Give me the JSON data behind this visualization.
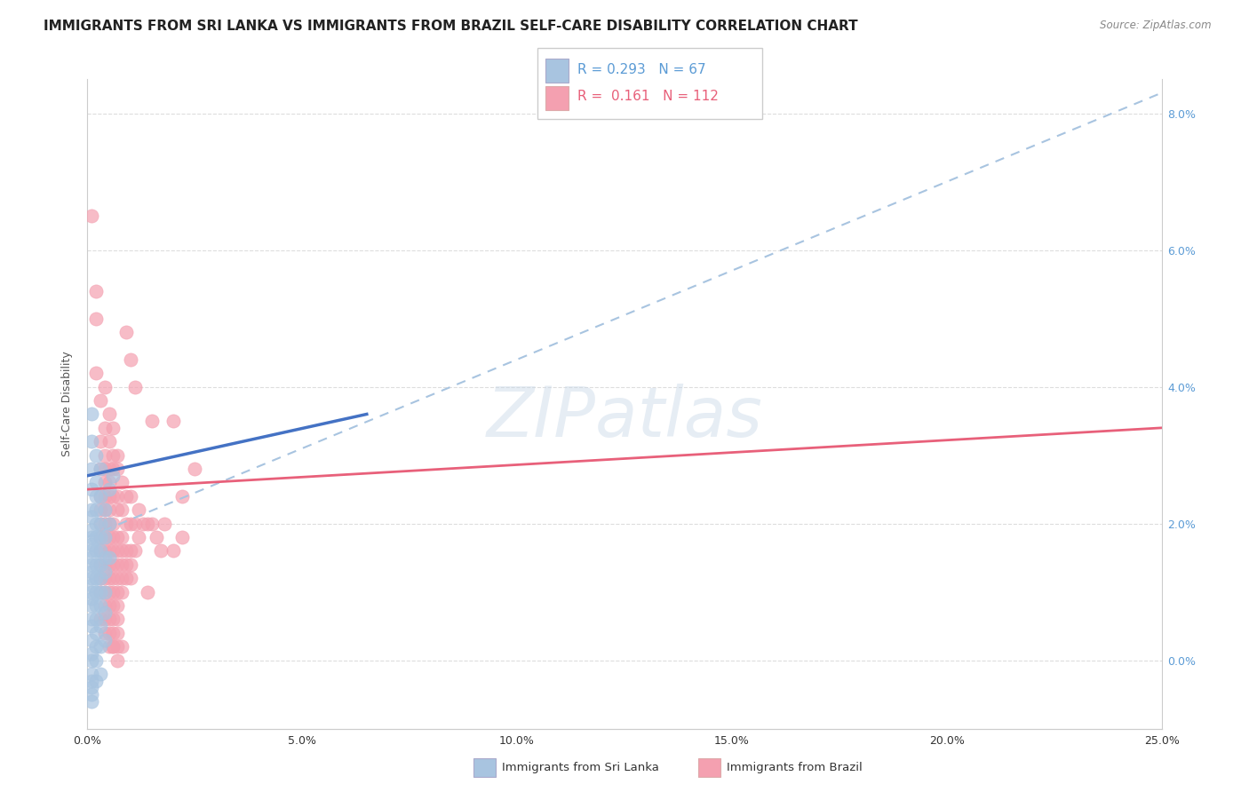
{
  "title": "IMMIGRANTS FROM SRI LANKA VS IMMIGRANTS FROM BRAZIL SELF-CARE DISABILITY CORRELATION CHART",
  "source": "Source: ZipAtlas.com",
  "ylabel_label": "Self-Care Disability",
  "xlim": [
    0.0,
    0.25
  ],
  "ylim": [
    -0.01,
    0.085
  ],
  "yticks": [
    0.0,
    0.02,
    0.04,
    0.06,
    0.08
  ],
  "yticklabels": [
    "0.0%",
    "2.0%",
    "4.0%",
    "6.0%",
    "8.0%"
  ],
  "xticks": [
    0.0,
    0.05,
    0.1,
    0.15,
    0.2,
    0.25
  ],
  "xticklabels": [
    "0.0%",
    "5.0%",
    "10.0%",
    "15.0%",
    "20.0%",
    "25.0%"
  ],
  "sri_lanka_color": "#a8c4e0",
  "brazil_color": "#f4a0b0",
  "sri_lanka_line_color": "#4472c4",
  "brazil_line_color": "#e8607a",
  "dashed_line_color": "#a8c4e0",
  "legend_box_sri_lanka": "#a8c4e0",
  "legend_box_brazil": "#f4a0b0",
  "R_sri_lanka": 0.293,
  "N_sri_lanka": 67,
  "R_brazil": 0.161,
  "N_brazil": 112,
  "watermark": "ZIPatlas",
  "sri_lanka_scatter": [
    [
      0.001,
      0.036
    ],
    [
      0.001,
      0.032
    ],
    [
      0.001,
      0.028
    ],
    [
      0.001,
      0.025
    ],
    [
      0.001,
      0.022
    ],
    [
      0.001,
      0.021
    ],
    [
      0.001,
      0.019
    ],
    [
      0.001,
      0.018
    ],
    [
      0.001,
      0.017
    ],
    [
      0.001,
      0.016
    ],
    [
      0.001,
      0.015
    ],
    [
      0.001,
      0.014
    ],
    [
      0.001,
      0.013
    ],
    [
      0.001,
      0.012
    ],
    [
      0.001,
      0.011
    ],
    [
      0.001,
      0.01
    ],
    [
      0.001,
      0.009
    ],
    [
      0.001,
      0.008
    ],
    [
      0.001,
      0.006
    ],
    [
      0.001,
      0.005
    ],
    [
      0.001,
      0.003
    ],
    [
      0.001,
      0.001
    ],
    [
      0.001,
      0.0
    ],
    [
      0.001,
      -0.002
    ],
    [
      0.001,
      -0.003
    ],
    [
      0.001,
      -0.004
    ],
    [
      0.001,
      -0.005
    ],
    [
      0.001,
      -0.006
    ],
    [
      0.002,
      0.03
    ],
    [
      0.002,
      0.026
    ],
    [
      0.002,
      0.024
    ],
    [
      0.002,
      0.022
    ],
    [
      0.002,
      0.02
    ],
    [
      0.002,
      0.018
    ],
    [
      0.002,
      0.016
    ],
    [
      0.002,
      0.014
    ],
    [
      0.002,
      0.012
    ],
    [
      0.002,
      0.01
    ],
    [
      0.002,
      0.008
    ],
    [
      0.002,
      0.006
    ],
    [
      0.002,
      0.004
    ],
    [
      0.002,
      0.002
    ],
    [
      0.002,
      0.0
    ],
    [
      0.002,
      -0.003
    ],
    [
      0.003,
      0.028
    ],
    [
      0.003,
      0.024
    ],
    [
      0.003,
      0.02
    ],
    [
      0.003,
      0.018
    ],
    [
      0.003,
      0.016
    ],
    [
      0.003,
      0.014
    ],
    [
      0.003,
      0.012
    ],
    [
      0.003,
      0.01
    ],
    [
      0.003,
      0.008
    ],
    [
      0.003,
      0.005
    ],
    [
      0.003,
      0.002
    ],
    [
      0.003,
      -0.002
    ],
    [
      0.004,
      0.022
    ],
    [
      0.004,
      0.018
    ],
    [
      0.004,
      0.015
    ],
    [
      0.004,
      0.013
    ],
    [
      0.004,
      0.01
    ],
    [
      0.004,
      0.007
    ],
    [
      0.004,
      0.003
    ],
    [
      0.005,
      0.025
    ],
    [
      0.005,
      0.02
    ],
    [
      0.005,
      0.015
    ],
    [
      0.006,
      0.027
    ]
  ],
  "brazil_scatter": [
    [
      0.001,
      0.065
    ],
    [
      0.002,
      0.054
    ],
    [
      0.002,
      0.05
    ],
    [
      0.002,
      0.042
    ],
    [
      0.003,
      0.038
    ],
    [
      0.003,
      0.032
    ],
    [
      0.003,
      0.028
    ],
    [
      0.003,
      0.024
    ],
    [
      0.003,
      0.022
    ],
    [
      0.003,
      0.02
    ],
    [
      0.003,
      0.018
    ],
    [
      0.003,
      0.016
    ],
    [
      0.003,
      0.014
    ],
    [
      0.003,
      0.012
    ],
    [
      0.003,
      0.01
    ],
    [
      0.003,
      0.006
    ],
    [
      0.004,
      0.04
    ],
    [
      0.004,
      0.034
    ],
    [
      0.004,
      0.03
    ],
    [
      0.004,
      0.028
    ],
    [
      0.004,
      0.026
    ],
    [
      0.004,
      0.024
    ],
    [
      0.004,
      0.022
    ],
    [
      0.004,
      0.02
    ],
    [
      0.004,
      0.018
    ],
    [
      0.004,
      0.016
    ],
    [
      0.004,
      0.014
    ],
    [
      0.004,
      0.012
    ],
    [
      0.004,
      0.01
    ],
    [
      0.004,
      0.008
    ],
    [
      0.004,
      0.006
    ],
    [
      0.004,
      0.004
    ],
    [
      0.005,
      0.036
    ],
    [
      0.005,
      0.032
    ],
    [
      0.005,
      0.028
    ],
    [
      0.005,
      0.026
    ],
    [
      0.005,
      0.024
    ],
    [
      0.005,
      0.022
    ],
    [
      0.005,
      0.02
    ],
    [
      0.005,
      0.018
    ],
    [
      0.005,
      0.016
    ],
    [
      0.005,
      0.014
    ],
    [
      0.005,
      0.012
    ],
    [
      0.005,
      0.01
    ],
    [
      0.005,
      0.008
    ],
    [
      0.005,
      0.006
    ],
    [
      0.005,
      0.004
    ],
    [
      0.005,
      0.002
    ],
    [
      0.006,
      0.034
    ],
    [
      0.006,
      0.03
    ],
    [
      0.006,
      0.028
    ],
    [
      0.006,
      0.024
    ],
    [
      0.006,
      0.02
    ],
    [
      0.006,
      0.018
    ],
    [
      0.006,
      0.016
    ],
    [
      0.006,
      0.014
    ],
    [
      0.006,
      0.012
    ],
    [
      0.006,
      0.01
    ],
    [
      0.006,
      0.008
    ],
    [
      0.006,
      0.006
    ],
    [
      0.006,
      0.004
    ],
    [
      0.006,
      0.002
    ],
    [
      0.007,
      0.03
    ],
    [
      0.007,
      0.028
    ],
    [
      0.007,
      0.024
    ],
    [
      0.007,
      0.022
    ],
    [
      0.007,
      0.018
    ],
    [
      0.007,
      0.016
    ],
    [
      0.007,
      0.014
    ],
    [
      0.007,
      0.012
    ],
    [
      0.007,
      0.01
    ],
    [
      0.007,
      0.008
    ],
    [
      0.007,
      0.006
    ],
    [
      0.007,
      0.004
    ],
    [
      0.007,
      0.002
    ],
    [
      0.008,
      0.026
    ],
    [
      0.008,
      0.022
    ],
    [
      0.008,
      0.018
    ],
    [
      0.008,
      0.016
    ],
    [
      0.008,
      0.014
    ],
    [
      0.008,
      0.012
    ],
    [
      0.008,
      0.01
    ],
    [
      0.009,
      0.024
    ],
    [
      0.009,
      0.02
    ],
    [
      0.009,
      0.016
    ],
    [
      0.009,
      0.014
    ],
    [
      0.009,
      0.012
    ],
    [
      0.01,
      0.024
    ],
    [
      0.01,
      0.02
    ],
    [
      0.01,
      0.016
    ],
    [
      0.01,
      0.014
    ],
    [
      0.01,
      0.012
    ],
    [
      0.011,
      0.02
    ],
    [
      0.011,
      0.016
    ],
    [
      0.012,
      0.022
    ],
    [
      0.012,
      0.018
    ],
    [
      0.013,
      0.02
    ],
    [
      0.014,
      0.02
    ],
    [
      0.015,
      0.02
    ],
    [
      0.016,
      0.018
    ],
    [
      0.018,
      0.02
    ],
    [
      0.02,
      0.016
    ],
    [
      0.022,
      0.018
    ],
    [
      0.009,
      0.048
    ],
    [
      0.01,
      0.044
    ],
    [
      0.011,
      0.04
    ],
    [
      0.015,
      0.035
    ],
    [
      0.02,
      0.035
    ],
    [
      0.025,
      0.028
    ],
    [
      0.022,
      0.024
    ],
    [
      0.017,
      0.016
    ],
    [
      0.014,
      0.01
    ],
    [
      0.006,
      0.002
    ],
    [
      0.007,
      0.0
    ],
    [
      0.008,
      0.002
    ]
  ],
  "background_color": "#ffffff",
  "grid_color": "#dddddd",
  "title_fontsize": 11,
  "axis_label_fontsize": 9,
  "tick_fontsize": 9,
  "sl_trend_x": [
    0.0,
    0.065
  ],
  "sl_trend_y": [
    0.027,
    0.036
  ],
  "dashed_trend_x": [
    0.0,
    0.25
  ],
  "dashed_trend_y": [
    0.018,
    0.083
  ],
  "br_trend_x": [
    0.0,
    0.25
  ],
  "br_trend_y": [
    0.025,
    0.034
  ]
}
